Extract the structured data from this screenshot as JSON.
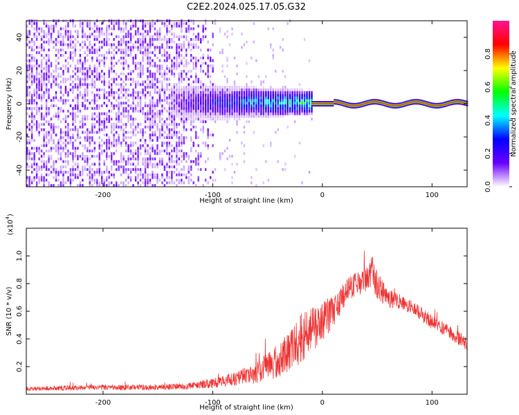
{
  "chart_data": [
    {
      "type": "heatmap",
      "title": "C2E2.2024.025.17.05.G32",
      "xlabel": "Height of straight line (km)",
      "ylabel": "Frequency (Hz)",
      "xlim": [
        -270,
        132
      ],
      "ylim": [
        -50,
        50
      ],
      "x_ticks": [
        -200,
        -100,
        0,
        100
      ],
      "x_tick_labels": [
        "-200",
        "-100",
        "0",
        "100"
      ],
      "y_ticks": [
        -40,
        -20,
        0,
        20,
        40
      ],
      "y_tick_labels": [
        "-40",
        "-20",
        "0",
        "20",
        "40"
      ],
      "colorbar": {
        "label": "Normalized spectral amplitude",
        "range": [
          0,
          1
        ],
        "ticks": [
          0.0,
          0.2,
          0.4,
          0.6,
          0.8
        ],
        "tick_labels": [
          "0.0",
          "0.2",
          "0.4",
          "0.6",
          "0.8"
        ],
        "colors": [
          "#ffffff",
          "#6a00ff",
          "#0000ff",
          "#00ffff",
          "#00ff00",
          "#ffff00",
          "#ff0000",
          "#ff1493"
        ]
      },
      "features": {
        "noise_band_x": [
          -270,
          -100
        ],
        "transition_x": [
          -140,
          -10
        ],
        "signal_line_frequency": 0,
        "signal_line_x": [
          -10,
          132
        ]
      }
    },
    {
      "type": "line",
      "xlabel": "Height of straight line (km)",
      "ylabel": "SNR (10 * v/v)",
      "y_exponent_label": "(x10",
      "y_exponent_power": "4",
      "y_exponent_close": ")",
      "xlim": [
        -270,
        132
      ],
      "ylim": [
        0,
        1.2
      ],
      "x_ticks": [
        -200,
        -100,
        0,
        100
      ],
      "x_tick_labels": [
        "-200",
        "-100",
        "0",
        "100"
      ],
      "y_ticks": [
        0.2,
        0.4,
        0.6,
        0.8,
        1.0
      ],
      "y_tick_labels": [
        "0.2",
        "0.4",
        "0.6",
        "0.8",
        "1.0"
      ],
      "color": "#ee3333",
      "envelope": {
        "x": [
          -270,
          -200,
          -150,
          -120,
          -100,
          -80,
          -60,
          -40,
          -20,
          0,
          10,
          20,
          30,
          40,
          45,
          50,
          60,
          80,
          100,
          120,
          132
        ],
        "mean": [
          0.04,
          0.05,
          0.05,
          0.06,
          0.08,
          0.11,
          0.16,
          0.24,
          0.4,
          0.52,
          0.6,
          0.72,
          0.8,
          0.82,
          0.9,
          0.78,
          0.7,
          0.64,
          0.52,
          0.43,
          0.36
        ],
        "spread": [
          0.015,
          0.02,
          0.02,
          0.025,
          0.035,
          0.05,
          0.08,
          0.12,
          0.18,
          0.15,
          0.12,
          0.1,
          0.09,
          0.09,
          0.12,
          0.1,
          0.07,
          0.05,
          0.05,
          0.05,
          0.05
        ]
      }
    }
  ]
}
